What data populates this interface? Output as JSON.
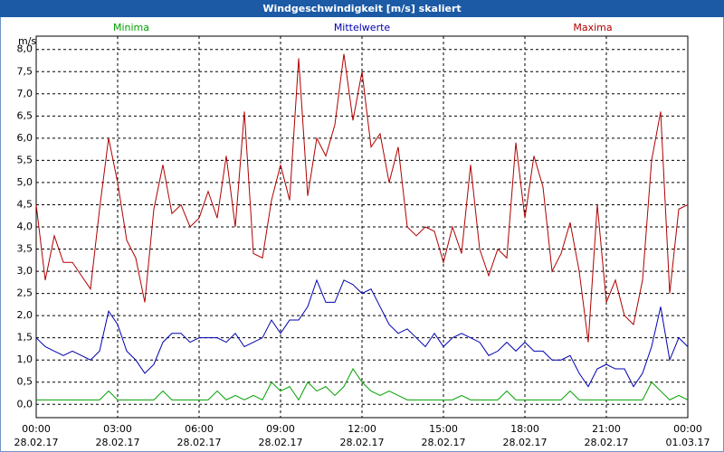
{
  "chart_data": {
    "type": "line",
    "title": "Windgeschwindigkeit [m/s] skaliert",
    "y_label": "m/s",
    "x": [
      0,
      20,
      40,
      60,
      80,
      100,
      120,
      140,
      160,
      180,
      200,
      220,
      240,
      260,
      280,
      300,
      320,
      340,
      360,
      380,
      400,
      420,
      440,
      460,
      480,
      500,
      520,
      540,
      560,
      580,
      600,
      620,
      640,
      660,
      680,
      700,
      720,
      740,
      760,
      780,
      800,
      820,
      840,
      860,
      880,
      900,
      920,
      940,
      960,
      980,
      1000,
      1020,
      1040,
      1060,
      1080,
      1100,
      1120,
      1140,
      1160,
      1180,
      1200,
      1220,
      1240,
      1260,
      1280,
      1300,
      1320,
      1340,
      1360,
      1380,
      1400,
      1420,
      1440
    ],
    "series": [
      {
        "name": "Minima",
        "color": "#00a000",
        "values": [
          0.1,
          0.1,
          0.1,
          0.1,
          0.1,
          0.1,
          0.1,
          0.1,
          0.3,
          0.1,
          0.1,
          0.1,
          0.1,
          0.1,
          0.3,
          0.1,
          0.1,
          0.1,
          0.1,
          0.1,
          0.3,
          0.1,
          0.2,
          0.1,
          0.2,
          0.1,
          0.5,
          0.3,
          0.4,
          0.1,
          0.5,
          0.3,
          0.4,
          0.2,
          0.4,
          0.8,
          0.5,
          0.3,
          0.2,
          0.3,
          0.2,
          0.1,
          0.1,
          0.1,
          0.1,
          0.1,
          0.1,
          0.2,
          0.1,
          0.1,
          0.1,
          0.1,
          0.3,
          0.1,
          0.1,
          0.1,
          0.1,
          0.1,
          0.1,
          0.3,
          0.1,
          0.1,
          0.1,
          0.1,
          0.1,
          0.1,
          0.1,
          0.1,
          0.5,
          0.3,
          0.1,
          0.2,
          0.1
        ]
      },
      {
        "name": "Mittelwerte",
        "color": "#0000b0",
        "values": [
          1.5,
          1.3,
          1.2,
          1.1,
          1.2,
          1.1,
          1.0,
          1.2,
          2.1,
          1.8,
          1.2,
          1.0,
          0.7,
          0.9,
          1.4,
          1.6,
          1.6,
          1.4,
          1.5,
          1.5,
          1.5,
          1.4,
          1.6,
          1.3,
          1.4,
          1.5,
          1.9,
          1.6,
          1.9,
          1.9,
          2.2,
          2.8,
          2.3,
          2.3,
          2.8,
          2.7,
          2.5,
          2.6,
          2.2,
          1.8,
          1.6,
          1.7,
          1.5,
          1.3,
          1.6,
          1.3,
          1.5,
          1.6,
          1.5,
          1.4,
          1.1,
          1.2,
          1.4,
          1.2,
          1.4,
          1.2,
          1.2,
          1.0,
          1.0,
          1.1,
          0.7,
          0.4,
          0.8,
          0.9,
          0.8,
          0.8,
          0.4,
          0.7,
          1.3,
          2.2,
          1.0,
          1.5,
          1.3
        ]
      },
      {
        "name": "Maxima",
        "color": "#b00000",
        "values": [
          4.5,
          2.8,
          3.8,
          3.2,
          3.2,
          2.9,
          2.6,
          4.4,
          6.0,
          5.0,
          3.7,
          3.3,
          2.3,
          4.4,
          5.4,
          4.3,
          4.5,
          4.0,
          4.2,
          4.8,
          4.2,
          5.6,
          4.0,
          6.6,
          3.4,
          3.3,
          4.6,
          5.4,
          4.6,
          7.8,
          4.7,
          6.0,
          5.6,
          6.3,
          7.9,
          6.4,
          7.5,
          5.8,
          6.1,
          5.0,
          5.8,
          4.0,
          3.8,
          4.0,
          3.9,
          3.2,
          4.0,
          3.4,
          5.4,
          3.5,
          2.9,
          3.5,
          3.3,
          5.9,
          4.2,
          5.6,
          4.9,
          3.0,
          3.4,
          4.1,
          3.0,
          1.4,
          4.5,
          2.3,
          2.8,
          2.0,
          1.8,
          2.8,
          5.5,
          6.6,
          2.5,
          4.4,
          4.5
        ]
      }
    ],
    "xlim": [
      0,
      1440
    ],
    "xticks": [
      {
        "value": 0,
        "label": "00:00",
        "date": "28.02.17"
      },
      {
        "value": 180,
        "label": "03:00",
        "date": "28.02.17"
      },
      {
        "value": 360,
        "label": "06:00",
        "date": "28.02.17"
      },
      {
        "value": 540,
        "label": "09:00",
        "date": "28.02.17"
      },
      {
        "value": 720,
        "label": "12:00",
        "date": "28.02.17"
      },
      {
        "value": 900,
        "label": "15:00",
        "date": "28.02.17"
      },
      {
        "value": 1080,
        "label": "18:00",
        "date": "28.02.17"
      },
      {
        "value": 1260,
        "label": "21:00",
        "date": "28.02.17"
      },
      {
        "value": 1440,
        "label": "00:00",
        "date": "01.03.17"
      }
    ],
    "ylim": [
      -0.3,
      8.3
    ],
    "yticks": [
      {
        "value": 0,
        "label": "0,0"
      },
      {
        "value": 0.5,
        "label": "0,5"
      },
      {
        "value": 1,
        "label": "1,0"
      },
      {
        "value": 1.5,
        "label": "1,5"
      },
      {
        "value": 2,
        "label": "2,0"
      },
      {
        "value": 2.5,
        "label": "2,5"
      },
      {
        "value": 3,
        "label": "3,0"
      },
      {
        "value": 3.5,
        "label": "3,5"
      },
      {
        "value": 4,
        "label": "4,0"
      },
      {
        "value": 4.5,
        "label": "4,5"
      },
      {
        "value": 5,
        "label": "5,0"
      },
      {
        "value": 5.5,
        "label": "5,5"
      },
      {
        "value": 6,
        "label": "6,0"
      },
      {
        "value": 6.5,
        "label": "6,5"
      },
      {
        "value": 7,
        "label": "7,0"
      },
      {
        "value": 7.5,
        "label": "7,5"
      },
      {
        "value": 8,
        "label": "8,0"
      }
    ],
    "grid": true
  }
}
